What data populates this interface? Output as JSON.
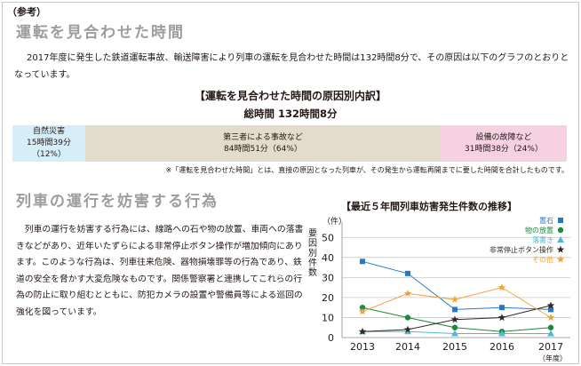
{
  "note_tag": "（参考）",
  "section1": {
    "title": "運転を見合わせた時間",
    "body": "2017年度に発生した鉄道運転事故、輸送障害により列車の運転を見合わせた時間は132時間8分で、その原因は以下のグラフのとおりとなっています。"
  },
  "breakdown": {
    "title": "【運転を見合わせた時間の原因別内訳】",
    "total": "総時間 132時間8分",
    "segments": [
      {
        "name": "自然災害",
        "value": "15時間39分（12%）",
        "percent": 12,
        "color": "#d6eef8"
      },
      {
        "name": "第三者による事故など",
        "value": "84時間51分（64%）",
        "percent": 64,
        "color": "#e3dbcc"
      },
      {
        "name": "設備の故障など",
        "value": "31時間38分（24%）",
        "percent": 24,
        "color": "#f6d1e1"
      }
    ],
    "footnote": "※「運転を見合わせた時間」とは、直接の原因となった列車が、その発生から運転再開までに要した時間を合計したものです。"
  },
  "section2": {
    "title": "列車の運行を妨害する行為",
    "body": "列車の運行を妨害する行為には、線路への石や物の放置、車両への落書きなどがあり、近年いたずらによる非常停止ボタン操作が増加傾向にあります。このような行為は、列車往来危険、器物損壊罪等の行為であり、鉄道の安全を脅かす大変危険なものです。関係警察署と連携してこれらの行為の防止に取り組むとともに、防犯カメラの設置や警備員等による巡回の強化を図っています。"
  },
  "chart_data": {
    "type": "line",
    "title": "【最近５年間列車妨害発生件数の推移】",
    "ylabel": "要因別件数",
    "yunit": "（件）",
    "xunit": "（年度）",
    "x": [
      "2013",
      "2014",
      "2015",
      "2016",
      "2017"
    ],
    "ylim": [
      0,
      55
    ],
    "yticks": [
      0,
      10,
      20,
      30,
      40,
      50
    ],
    "grid": true,
    "legend_position": "top-right",
    "series": [
      {
        "name": "置石",
        "marker": "square",
        "color": "#2b78c2",
        "values": [
          38,
          32,
          14,
          15,
          14
        ]
      },
      {
        "name": "物の放置",
        "marker": "circle",
        "color": "#1d8a3c",
        "values": [
          15,
          10,
          5,
          3,
          5
        ]
      },
      {
        "name": "落書き",
        "marker": "triangle",
        "color": "#4fb8d9",
        "values": [
          3,
          3,
          2,
          2,
          2
        ]
      },
      {
        "name": "非常停止ボタン操作",
        "marker": "star",
        "color": "#2e2a28",
        "values": [
          3,
          4,
          9,
          10,
          16
        ]
      },
      {
        "name": "その他",
        "marker": "star",
        "color": "#f1a33a",
        "values": [
          13,
          22,
          19,
          25,
          10
        ]
      }
    ]
  }
}
